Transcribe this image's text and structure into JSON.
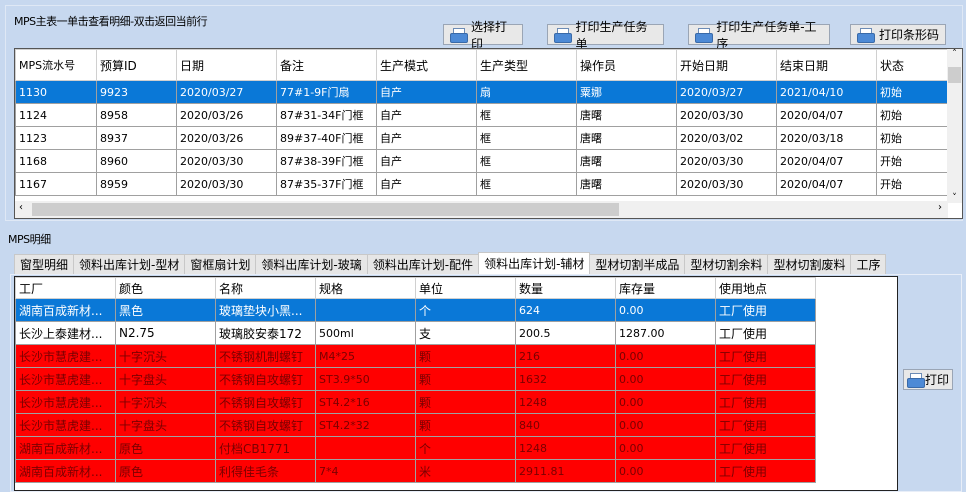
{
  "main": {
    "title": "MPS主表一单击查看明细-双击返回当前行",
    "buttons": [
      "选择打印",
      "打印生产任务单",
      "打印生产任务单-工序",
      "打印条形码"
    ],
    "columns": [
      "MPS流水号",
      "预算ID",
      "日期",
      "备注",
      "生产模式",
      "生产类型",
      "操作员",
      "开始日期",
      "结束日期",
      "状态"
    ],
    "rows": [
      [
        "1130",
        "9923",
        "2020/03/27",
        "77#1-9F门扇",
        "自产",
        "扇",
        "粟娜",
        "2020/03/27",
        "2021/04/10",
        "初始"
      ],
      [
        "1124",
        "8958",
        "2020/03/26",
        "87#31-34F门框",
        "自产",
        "框",
        "唐曙",
        "2020/03/30",
        "2020/04/07",
        "初始"
      ],
      [
        "1123",
        "8937",
        "2020/03/26",
        "89#37-40F门框",
        "自产",
        "框",
        "唐曙",
        "2020/03/02",
        "2020/03/18",
        "初始"
      ],
      [
        "1168",
        "8960",
        "2020/03/30",
        "87#38-39F门框",
        "自产",
        "框",
        "唐曙",
        "2020/03/30",
        "2020/04/07",
        "开始"
      ],
      [
        "1167",
        "8959",
        "2020/03/30",
        "87#35-37F门框",
        "自产",
        "框",
        "唐曙",
        "2020/03/30",
        "2020/04/07",
        "开始"
      ]
    ],
    "selected_row": 0
  },
  "detail": {
    "title": "MPS明细",
    "tabs": [
      "窗型明细",
      "领料出库计划-型材",
      "窗框扇计划",
      "领料出库计划-玻璃",
      "领料出库计划-配件",
      "领料出库计划-辅材",
      "型材切割半成品",
      "型材切割余料",
      "型材切割废料",
      "工序"
    ],
    "active_tab": 5,
    "columns": [
      "工厂",
      "颜色",
      "名称",
      "规格",
      "单位",
      "数量",
      "库存量",
      "使用地点"
    ],
    "rows": [
      [
        "湖南百成新材...",
        "黑色",
        "玻璃垫块小黑...",
        "",
        "个",
        "624",
        "0.00",
        "工厂使用"
      ],
      [
        "长沙上泰建材...",
        "N2.75",
        "玻璃胶安泰172",
        "500ml",
        "支",
        "200.5",
        "1287.00",
        "工厂使用"
      ],
      [
        "长沙市慧虎建...",
        "十字沉头",
        "不锈钢机制螺钉",
        "M4*25",
        "颗",
        "216",
        "0.00",
        "工厂使用"
      ],
      [
        "长沙市慧虎建...",
        "十字盘头",
        "不锈钢自攻螺钉",
        "ST3.9*50",
        "颗",
        "1632",
        "0.00",
        "工厂使用"
      ],
      [
        "长沙市慧虎建...",
        "十字沉头",
        "不锈钢自攻螺钉",
        "ST4.2*16",
        "颗",
        "1248",
        "0.00",
        "工厂使用"
      ],
      [
        "长沙市慧虎建...",
        "十字盘头",
        "不锈钢自攻螺钉",
        "ST4.2*32",
        "颗",
        "840",
        "0.00",
        "工厂使用"
      ],
      [
        "湖南百成新材...",
        "原色",
        "付档CB1771",
        "",
        "个",
        "1248",
        "0.00",
        "工厂使用"
      ],
      [
        "湖南百成新材...",
        "原色",
        "利得佳毛条",
        "7*4",
        "米",
        "2911.81",
        "0.00",
        "工厂使用"
      ]
    ],
    "row_styles": [
      "selected",
      "normal",
      "red",
      "red",
      "red",
      "red",
      "red",
      "red"
    ],
    "print_label": "打印"
  },
  "colors": {
    "selected": "#0a78d7",
    "warning": "#ff0000",
    "background": "#c7d8ef"
  }
}
